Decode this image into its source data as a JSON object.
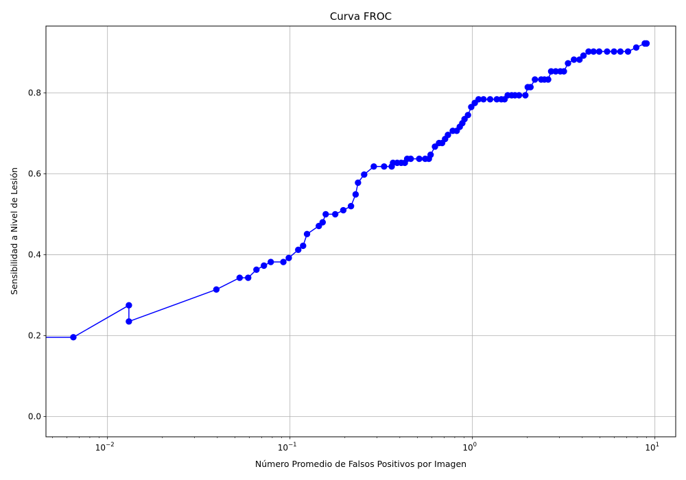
{
  "chart_data": {
    "type": "line",
    "title": "Curva FROC",
    "xlabel": "Número Promedio de Falsos Positivos por Imagen",
    "ylabel": "Sensibilidad a Nivel de Lesión",
    "xscale": "log",
    "xlim": [
      0.0046,
      13
    ],
    "ylim": [
      -0.05,
      0.965
    ],
    "grid": true,
    "x_ticks": [
      {
        "value": 0.01,
        "base": "10",
        "exp": "−2"
      },
      {
        "value": 0.1,
        "base": "10",
        "exp": "−1"
      },
      {
        "value": 1,
        "base": "10",
        "exp": "0"
      },
      {
        "value": 10,
        "base": "10",
        "exp": "1"
      }
    ],
    "y_ticks": [
      {
        "value": 0.0,
        "label": "0.0"
      },
      {
        "value": 0.2,
        "label": "0.2"
      },
      {
        "value": 0.4,
        "label": "0.4"
      },
      {
        "value": 0.6,
        "label": "0.6"
      },
      {
        "value": 0.8,
        "label": "0.8"
      }
    ],
    "color": "#0000ff",
    "series": [
      {
        "points": [
          [
            0.0046,
            0.196
          ],
          [
            0.0065,
            0.196
          ],
          [
            0.0131,
            0.275
          ],
          [
            0.0131,
            0.235
          ],
          [
            0.0395,
            0.314
          ],
          [
            0.053,
            0.343
          ],
          [
            0.059,
            0.343
          ],
          [
            0.0655,
            0.363
          ],
          [
            0.072,
            0.373
          ],
          [
            0.0785,
            0.382
          ],
          [
            0.092,
            0.382
          ],
          [
            0.0985,
            0.392
          ],
          [
            0.111,
            0.412
          ],
          [
            0.118,
            0.422
          ],
          [
            0.124,
            0.451
          ],
          [
            0.144,
            0.471
          ],
          [
            0.151,
            0.48
          ],
          [
            0.157,
            0.5
          ],
          [
            0.177,
            0.5
          ],
          [
            0.196,
            0.51
          ],
          [
            0.216,
            0.52
          ],
          [
            0.229,
            0.549
          ],
          [
            0.236,
            0.578
          ],
          [
            0.255,
            0.598
          ],
          [
            0.288,
            0.618
          ],
          [
            0.328,
            0.618
          ],
          [
            0.361,
            0.618
          ],
          [
            0.367,
            0.627
          ],
          [
            0.387,
            0.627
          ],
          [
            0.407,
            0.627
          ],
          [
            0.426,
            0.627
          ],
          [
            0.439,
            0.637
          ],
          [
            0.459,
            0.637
          ],
          [
            0.511,
            0.637
          ],
          [
            0.551,
            0.637
          ],
          [
            0.577,
            0.637
          ],
          [
            0.59,
            0.647
          ],
          [
            0.623,
            0.667
          ],
          [
            0.656,
            0.676
          ],
          [
            0.682,
            0.676
          ],
          [
            0.708,
            0.686
          ],
          [
            0.734,
            0.696
          ],
          [
            0.78,
            0.706
          ],
          [
            0.82,
            0.706
          ],
          [
            0.852,
            0.716
          ],
          [
            0.88,
            0.725
          ],
          [
            0.905,
            0.735
          ],
          [
            0.945,
            0.745
          ],
          [
            0.985,
            0.765
          ],
          [
            1.03,
            0.775
          ],
          [
            1.08,
            0.784
          ],
          [
            1.15,
            0.784
          ],
          [
            1.25,
            0.784
          ],
          [
            1.36,
            0.784
          ],
          [
            1.44,
            0.784
          ],
          [
            1.5,
            0.784
          ],
          [
            1.56,
            0.794
          ],
          [
            1.64,
            0.794
          ],
          [
            1.71,
            0.794
          ],
          [
            1.8,
            0.794
          ],
          [
            1.95,
            0.794
          ],
          [
            2.01,
            0.814
          ],
          [
            2.08,
            0.814
          ],
          [
            2.2,
            0.833
          ],
          [
            2.38,
            0.833
          ],
          [
            2.48,
            0.833
          ],
          [
            2.6,
            0.833
          ],
          [
            2.7,
            0.853
          ],
          [
            2.86,
            0.853
          ],
          [
            3.03,
            0.853
          ],
          [
            3.17,
            0.853
          ],
          [
            3.34,
            0.873
          ],
          [
            3.6,
            0.882
          ],
          [
            3.86,
            0.882
          ],
          [
            4.06,
            0.892
          ],
          [
            4.33,
            0.902
          ],
          [
            4.61,
            0.902
          ],
          [
            4.95,
            0.902
          ],
          [
            5.47,
            0.902
          ],
          [
            5.97,
            0.902
          ],
          [
            6.47,
            0.902
          ],
          [
            7.12,
            0.902
          ],
          [
            7.9,
            0.912
          ],
          [
            8.8,
            0.922
          ],
          [
            9.0,
            0.922
          ]
        ]
      }
    ]
  }
}
